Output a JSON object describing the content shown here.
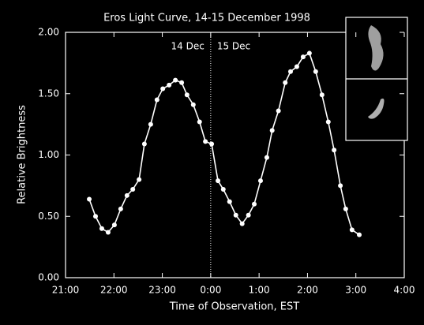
{
  "chart_data": {
    "type": "line",
    "title": "Eros Light Curve, 14-15 December 1998",
    "x_label": "Time of Observation, EST",
    "y_label": "Relative Brightness",
    "annotations": [
      "14 Dec",
      "15 Dec"
    ],
    "color": "#ffffff",
    "x": [
      21.49,
      21.62,
      21.75,
      21.88,
      22.01,
      22.14,
      22.27,
      22.39,
      22.52,
      22.63,
      22.76,
      22.89,
      23.01,
      23.14,
      23.27,
      23.4,
      23.51,
      23.64,
      23.77,
      23.89,
      24.02,
      24.15,
      24.26,
      24.39,
      24.52,
      24.65,
      24.78,
      24.9,
      25.03,
      25.16,
      25.27,
      25.4,
      25.54,
      25.65,
      25.78,
      25.91,
      26.04,
      26.17,
      26.3,
      26.43,
      26.55,
      26.68,
      26.79,
      26.92,
      27.07
    ],
    "values": [
      0.64,
      0.5,
      0.4,
      0.37,
      0.43,
      0.56,
      0.67,
      0.72,
      0.8,
      1.09,
      1.25,
      1.45,
      1.54,
      1.57,
      1.61,
      1.59,
      1.49,
      1.41,
      1.27,
      1.11,
      1.09,
      0.79,
      0.72,
      0.62,
      0.51,
      0.44,
      0.51,
      0.6,
      0.79,
      0.98,
      1.2,
      1.36,
      1.59,
      1.68,
      1.72,
      1.8,
      1.83,
      1.68,
      1.49,
      1.27,
      1.04,
      0.75,
      0.56,
      0.39,
      0.35
    ],
    "xlim": [
      21,
      28
    ],
    "ylim": [
      0,
      2
    ],
    "xticks": [
      {
        "value": 21,
        "label": "21:00"
      },
      {
        "value": 22,
        "label": "22:00"
      },
      {
        "value": 23,
        "label": "23:00"
      },
      {
        "value": 24,
        "label": "0:00"
      },
      {
        "value": 25,
        "label": "1:00"
      },
      {
        "value": 26,
        "label": "2:00"
      },
      {
        "value": 27,
        "label": "3:00"
      },
      {
        "value": 28,
        "label": "4:00"
      }
    ],
    "yticks": [
      {
        "value": 0,
        "label": "0.00"
      },
      {
        "value": 0.5,
        "label": "0.50"
      },
      {
        "value": 1,
        "label": "1.00"
      },
      {
        "value": 1.5,
        "label": "1.50"
      },
      {
        "value": 2,
        "label": "2.00"
      }
    ]
  }
}
